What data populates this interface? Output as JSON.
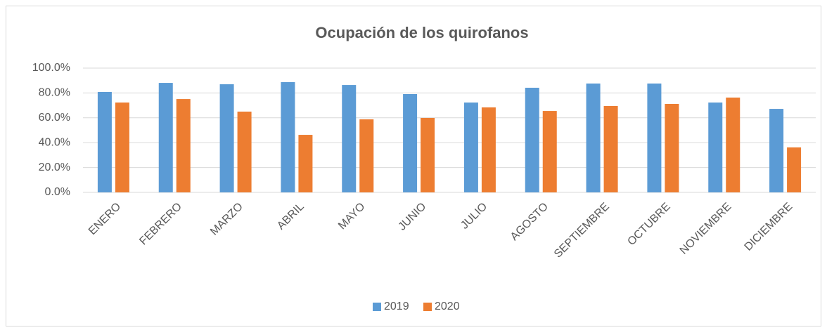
{
  "chart_data": {
    "type": "bar",
    "title": "Ocupación de los quirofanos",
    "categories": [
      "ENERO",
      "FEBRERO",
      "MARZO",
      "ABRIL",
      "MAYO",
      "JUNIO",
      "JULIO",
      "AGOSTO",
      "SEPTIEMBRE",
      "OCTUBRE",
      "NOVIEMBRE",
      "DICIEMBRE"
    ],
    "series": [
      {
        "name": "2019",
        "color": "#5b9bd5",
        "values": [
          80.8,
          88.1,
          87.0,
          88.7,
          86.4,
          79.1,
          72.3,
          84.2,
          87.6,
          87.6,
          72.3,
          67.2
        ]
      },
      {
        "name": "2020",
        "color": "#ed7d31",
        "values": [
          72.3,
          75.1,
          65.0,
          46.3,
          58.8,
          59.9,
          68.4,
          65.5,
          69.5,
          71.2,
          76.3,
          36.2
        ]
      }
    ],
    "ylim": [
      0,
      100
    ],
    "yticks": [
      {
        "value": 0,
        "label": "0.0%"
      },
      {
        "value": 20,
        "label": "20.0%"
      },
      {
        "value": 40,
        "label": "40.0%"
      },
      {
        "value": 60,
        "label": "60.0%"
      },
      {
        "value": 80,
        "label": "80.0%"
      },
      {
        "value": 100,
        "label": "100.0%"
      }
    ],
    "grid": true,
    "legend": "bottom"
  }
}
